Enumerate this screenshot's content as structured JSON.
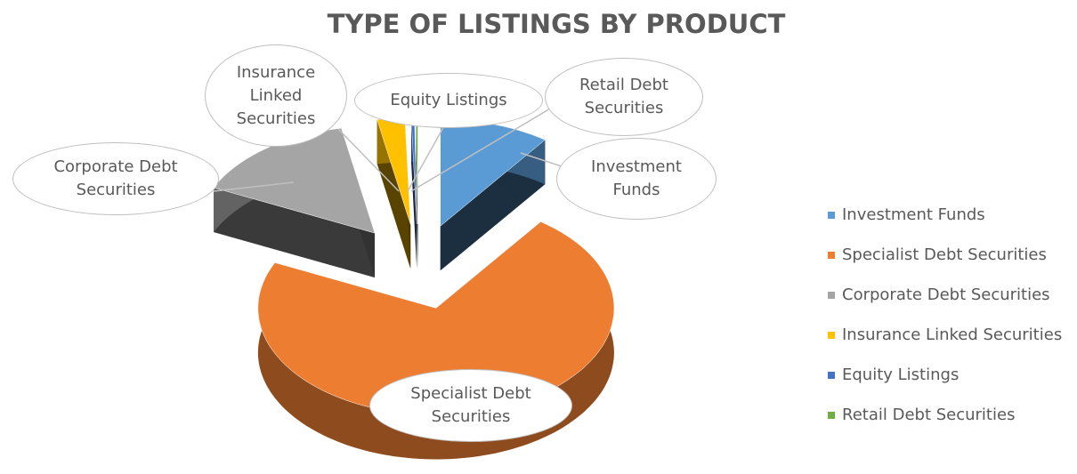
{
  "chart_data": {
    "type": "pie3d",
    "title": "TYPE OF LISTINGS BY PRODUCT",
    "categories": [
      "Investment Funds",
      "Specialist Debt Securities",
      "Corporate Debt Securities",
      "Insurance Linked Securities",
      "Equity Listings",
      "Retail Debt Securities"
    ],
    "values": [
      10,
      72,
      15,
      2.5,
      0.3,
      0.2
    ],
    "colors": [
      "#5b9bd5",
      "#ed7d31",
      "#a5a5a5",
      "#ffc000",
      "#4472c4",
      "#70ad47"
    ],
    "legend": "right"
  }
}
